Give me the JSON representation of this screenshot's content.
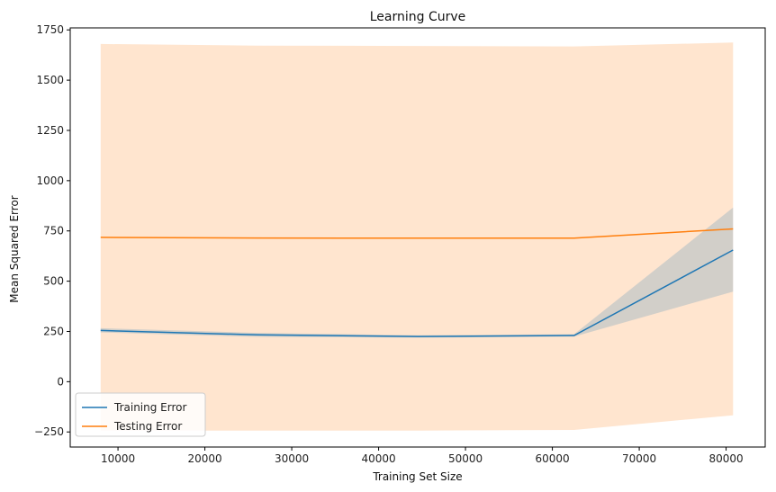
{
  "chart_data": {
    "type": "line",
    "title": "Learning Curve",
    "xlabel": "Training Set Size",
    "ylabel": "Mean Squared Error",
    "xlim": [
      4500,
      84500
    ],
    "ylim": [
      -325,
      1760
    ],
    "x_ticks": [
      10000,
      20000,
      30000,
      40000,
      50000,
      60000,
      70000,
      80000
    ],
    "y_ticks": [
      -250,
      0,
      250,
      500,
      750,
      1000,
      1250,
      1500,
      1750
    ],
    "grid": false,
    "legend_position": "lower-left",
    "series": [
      {
        "name": "Training Error",
        "color": "#1f77b4",
        "x": [
          8000,
          26000,
          44500,
          62500,
          80800
        ],
        "y": [
          255,
          233,
          225,
          230,
          655
        ],
        "band_lower": [
          245,
          223,
          219,
          224,
          448
        ],
        "band_upper": [
          266,
          243,
          231,
          236,
          866
        ]
      },
      {
        "name": "Testing Error",
        "color": "#ff7f0e",
        "x": [
          8000,
          26000,
          44500,
          62500,
          80800
        ],
        "y": [
          718,
          715,
          714,
          714,
          760
        ],
        "band_lower": [
          -243,
          -243,
          -243,
          -240,
          -167
        ],
        "band_upper": [
          1680,
          1672,
          1670,
          1668,
          1687
        ]
      }
    ]
  }
}
